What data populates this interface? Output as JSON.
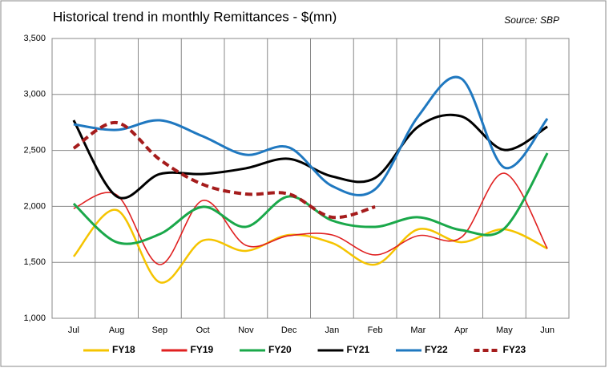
{
  "chart_data": {
    "type": "line",
    "title": "Historical trend in monthly Remittances - $(mn)",
    "source": "Source:  SBP",
    "categories": [
      "Jul",
      "Aug",
      "Sep",
      "Oct",
      "Nov",
      "Dec",
      "Jan",
      "Feb",
      "Mar",
      "Apr",
      "May",
      "Jun"
    ],
    "series": [
      {
        "name": "FY18",
        "color": "#f5c400",
        "values": [
          1552,
          1967,
          1322,
          1695,
          1602,
          1745,
          1673,
          1480,
          1795,
          1680,
          1795,
          1623
        ]
      },
      {
        "name": "FY19",
        "color": "#e02020",
        "values": [
          1981,
          2103,
          1480,
          2053,
          1652,
          1738,
          1745,
          1566,
          1738,
          1723,
          2296,
          1623
        ]
      },
      {
        "name": "FY20",
        "color": "#1aa84a",
        "values": [
          2024,
          1680,
          1752,
          1996,
          1817,
          2089,
          1874,
          1817,
          1903,
          1788,
          1802,
          2476
        ]
      },
      {
        "name": "FY21",
        "color": "#000000",
        "values": [
          2769,
          2089,
          2289,
          2289,
          2340,
          2425,
          2268,
          2254,
          2712,
          2805,
          2504,
          2712
        ]
      },
      {
        "name": "FY22",
        "color": "#1f78c0",
        "values": [
          2733,
          2683,
          2769,
          2626,
          2461,
          2526,
          2182,
          2153,
          2805,
          3142,
          2347,
          2784
        ]
      },
      {
        "name": "FY23",
        "color": "#a51c1c",
        "dashed": true,
        "values": [
          2519,
          2748,
          2418,
          2196,
          2110,
          2110,
          1903,
          1996,
          null,
          null,
          null,
          null
        ]
      }
    ],
    "ylim": [
      1000,
      3500
    ],
    "yticks": [
      {
        "value": 1000,
        "label": "1,000"
      },
      {
        "value": 1500,
        "label": "1,500"
      },
      {
        "value": 2000,
        "label": "2,000"
      },
      {
        "value": 2500,
        "label": "2,500"
      },
      {
        "value": 3000,
        "label": "3,000"
      },
      {
        "value": 3500,
        "label": "3,500"
      }
    ],
    "grid": true,
    "legend": "bottom"
  }
}
